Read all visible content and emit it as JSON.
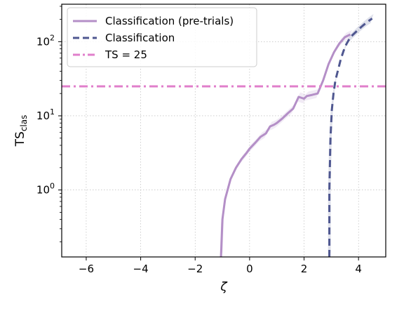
{
  "chart_data": {
    "type": "line",
    "title": "",
    "xlabel": "ζ",
    "ylabel": {
      "main": "TS",
      "sub": "clas"
    },
    "xscale": "linear",
    "yscale": "log",
    "xlim": [
      -6.9,
      5.0
    ],
    "ylim": [
      0.125,
      320
    ],
    "grid": true,
    "legend_position": "top-left",
    "x_ticks": [
      -6,
      -4,
      -2,
      0,
      2,
      4
    ],
    "x_tick_labels": [
      "−6",
      "−4",
      "−2",
      "0",
      "2",
      "4"
    ],
    "y_ticks": [
      {
        "value": 1,
        "base": "10",
        "exp": "0"
      },
      {
        "value": 10,
        "base": "10",
        "exp": "1"
      },
      {
        "value": 100,
        "base": "10",
        "exp": "2"
      }
    ],
    "series": [
      {
        "name": "Classification (pre-trials)",
        "color": "#b48fc7",
        "style": "solid",
        "band": true,
        "x": [
          -1.05,
          -1.0,
          -0.9,
          -0.7,
          -0.5,
          -0.3,
          -0.1,
          0.0,
          0.2,
          0.4,
          0.6,
          0.75,
          0.9,
          1.0,
          1.2,
          1.4,
          1.6,
          1.8,
          2.0,
          2.1,
          2.3,
          2.5,
          2.7,
          2.9,
          3.1,
          3.3,
          3.5,
          3.7
        ],
        "y": [
          0.125,
          0.4,
          0.75,
          1.4,
          2.0,
          2.6,
          3.2,
          3.6,
          4.3,
          5.2,
          5.8,
          7.2,
          7.6,
          8.0,
          9.2,
          10.8,
          12.5,
          18.0,
          17.0,
          18.5,
          19.2,
          20.0,
          30.0,
          50.0,
          72.0,
          95.0,
          115.0,
          125.0
        ]
      },
      {
        "name": "Classification",
        "color": "#4f5790",
        "style": "dashed",
        "band": true,
        "x": [
          2.93,
          2.93,
          2.97,
          3.02,
          3.08,
          3.15,
          3.25,
          3.35,
          3.45,
          3.55,
          3.7,
          3.9,
          4.1,
          4.3,
          4.5
        ],
        "y": [
          0.125,
          1.0,
          5.0,
          12.0,
          20.0,
          30.0,
          42.0,
          58.0,
          75.0,
          92.0,
          115.0,
          135.0,
          158.0,
          182.0,
          205.0
        ]
      },
      {
        "name": "TS = 25",
        "color": "#e07fcb",
        "style": "dashdot",
        "band": false,
        "x": [
          -6.9,
          5.0
        ],
        "y": [
          25,
          25
        ]
      }
    ]
  }
}
